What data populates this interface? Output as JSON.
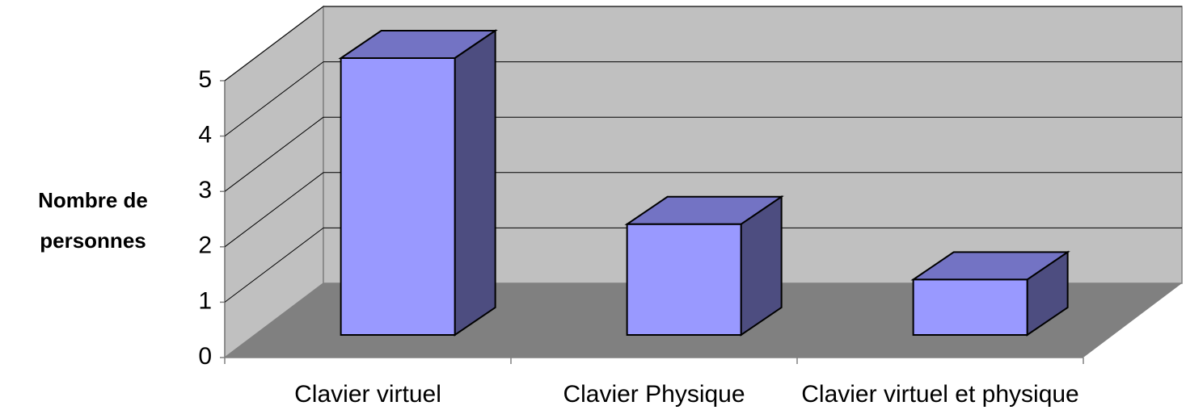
{
  "chart_data": {
    "type": "bar3d",
    "ylabel": [
      "Nombre de",
      "personnes"
    ],
    "categories": [
      "Clavier virtuel",
      "Clavier Physique",
      "Clavier virtuel et physique"
    ],
    "values": [
      5,
      2,
      1
    ],
    "color": "#9999ff",
    "ylim": [
      0,
      5
    ],
    "yticks": [
      0,
      1,
      2,
      3,
      4,
      5
    ],
    "grid": true
  }
}
